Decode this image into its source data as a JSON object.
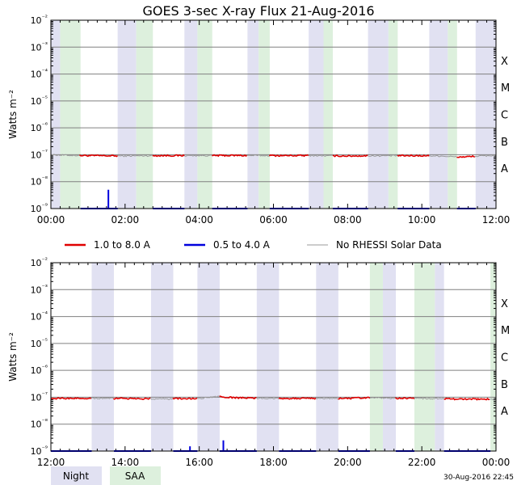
{
  "title": "GOES 3-sec X-ray Flux   21-Aug-2016",
  "timestamp": "30-Aug-2016 22:45",
  "colors": {
    "night": "#e1e1f2",
    "saa": "#ddf0dd",
    "long_channel": "#e00000",
    "short_channel": "#0000dd",
    "no_rhessi": "#9a9a9a",
    "grid": "#808080"
  },
  "legend": [
    {
      "key": "long",
      "label": "1.0 to 8.0 A",
      "color": "#e00000"
    },
    {
      "key": "short",
      "label": "0.5 to 4.0 A",
      "color": "#0000dd"
    },
    {
      "key": "rhessi",
      "label": "No RHESSI Solar Data",
      "color": "#9a9a9a"
    }
  ],
  "shade_legend": [
    {
      "key": "night",
      "label": "Night"
    },
    {
      "key": "saa",
      "label": "SAA"
    }
  ],
  "chart_data": [
    {
      "type": "line",
      "ylabel": "Watts m⁻²",
      "yscale": "log",
      "ylim_exp": [
        -9,
        -2
      ],
      "y_tick_labels": [
        "10⁻²",
        "10⁻³",
        "10⁻⁴",
        "10⁻⁵",
        "10⁻⁶",
        "10⁻⁷",
        "10⁻⁸",
        "10⁻⁹"
      ],
      "class_labels": [
        {
          "label": "X",
          "exp": -4
        },
        {
          "label": "M",
          "exp": -5
        },
        {
          "label": "C",
          "exp": -6
        },
        {
          "label": "B",
          "exp": -7
        },
        {
          "label": "A",
          "exp": -8
        }
      ],
      "xlim_hours": [
        0,
        12
      ],
      "x_tick_labels": [
        "00:00",
        "02:00",
        "04:00",
        "06:00",
        "08:00",
        "10:00",
        "12:00"
      ],
      "night_bands": [
        [
          0.0,
          0.25
        ],
        [
          1.8,
          2.3
        ],
        [
          3.6,
          3.95
        ],
        [
          5.3,
          5.6
        ],
        [
          6.95,
          7.35
        ],
        [
          8.55,
          9.1
        ],
        [
          10.2,
          10.7
        ],
        [
          11.45,
          12.0
        ]
      ],
      "saa_bands": [
        [
          0.25,
          0.8
        ],
        [
          2.3,
          2.75
        ],
        [
          3.95,
          4.35
        ],
        [
          5.6,
          5.9
        ],
        [
          7.35,
          7.6
        ],
        [
          9.1,
          9.35
        ],
        [
          10.7,
          10.95
        ]
      ],
      "series": [
        {
          "name": "1.0 to 8.0 A",
          "points": [
            [
              0,
              1e-07
            ],
            [
              0.5,
              9.5e-08
            ],
            [
              1,
              9.3e-08
            ],
            [
              2,
              9e-08
            ],
            [
              3,
              9.3e-08
            ],
            [
              4,
              9.3e-08
            ],
            [
              5,
              9.4e-08
            ],
            [
              6,
              9.3e-08
            ],
            [
              7,
              9.3e-08
            ],
            [
              8,
              9e-08
            ],
            [
              9,
              9.2e-08
            ],
            [
              10,
              9.2e-08
            ],
            [
              10.5,
              9e-08
            ],
            [
              11,
              8.2e-08
            ],
            [
              11.5,
              8.8e-08
            ],
            [
              12,
              9.5e-08
            ]
          ]
        },
        {
          "name": "0.5 to 4.0 A",
          "spikes": [
            [
              1.55,
              5e-09
            ]
          ],
          "baseline": 1e-09
        }
      ]
    },
    {
      "type": "line",
      "ylabel": "Watts m⁻²",
      "yscale": "log",
      "ylim_exp": [
        -9,
        -2
      ],
      "y_tick_labels": [
        "10⁻²",
        "10⁻³",
        "10⁻⁴",
        "10⁻⁵",
        "10⁻⁶",
        "10⁻⁷",
        "10⁻⁸",
        "10⁻⁹"
      ],
      "class_labels": [
        {
          "label": "X",
          "exp": -4
        },
        {
          "label": "M",
          "exp": -5
        },
        {
          "label": "C",
          "exp": -6
        },
        {
          "label": "B",
          "exp": -7
        },
        {
          "label": "A",
          "exp": -8
        }
      ],
      "xlim_hours": [
        12,
        24
      ],
      "x_tick_labels": [
        "12:00",
        "14:00",
        "16:00",
        "18:00",
        "20:00",
        "22:00",
        "00:00"
      ],
      "night_bands": [
        [
          13.1,
          13.7
        ],
        [
          14.7,
          15.3
        ],
        [
          15.95,
          16.55
        ],
        [
          17.55,
          18.15
        ],
        [
          19.15,
          19.75
        ],
        [
          20.95,
          21.3
        ],
        [
          22.35,
          22.6
        ]
      ],
      "saa_bands": [
        [
          20.6,
          20.95
        ],
        [
          21.8,
          22.35
        ],
        [
          23.85,
          24.0
        ]
      ],
      "series": [
        {
          "name": "1.0 to 8.0 A",
          "points": [
            [
              12,
              9e-08
            ],
            [
              13,
              9.2e-08
            ],
            [
              14,
              9e-08
            ],
            [
              15,
              8.7e-08
            ],
            [
              16,
              9e-08
            ],
            [
              16.5,
              1.05e-07
            ],
            [
              17,
              9.5e-08
            ],
            [
              18,
              9.1e-08
            ],
            [
              19,
              9.1e-08
            ],
            [
              20,
              9e-08
            ],
            [
              20.5,
              9.6e-08
            ],
            [
              21,
              9.3e-08
            ],
            [
              22,
              9e-08
            ],
            [
              23,
              8.5e-08
            ],
            [
              24,
              8.5e-08
            ]
          ]
        },
        {
          "name": "0.5 to 4.0 A",
          "spikes": [
            [
              15.75,
              1.5e-09
            ],
            [
              16.65,
              2.5e-09
            ]
          ],
          "baseline": 1e-09
        }
      ]
    }
  ]
}
